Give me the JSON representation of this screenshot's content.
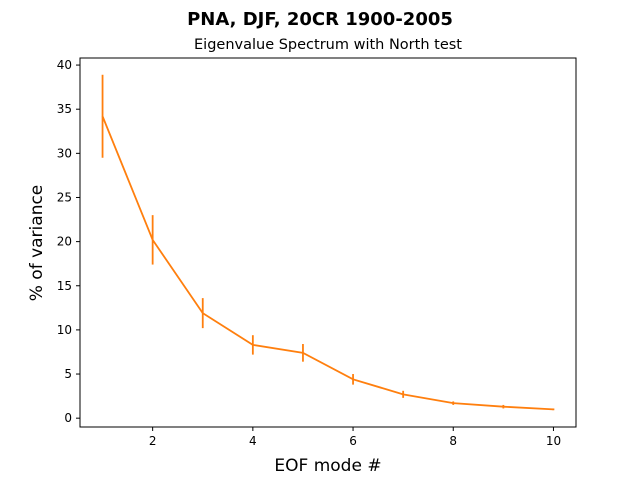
{
  "chart_data": {
    "type": "line",
    "suptitle": "PNA, DJF, 20CR 1900-2005",
    "title": "Eigenvalue Spectrum with North test",
    "xlabel": "EOF mode #",
    "ylabel": "% of variance",
    "xlim": [
      0.55,
      10.45
    ],
    "ylim": [
      -1.0,
      40.8
    ],
    "xticks": [
      2,
      4,
      6,
      8,
      10
    ],
    "yticks": [
      0,
      5,
      10,
      15,
      20,
      25,
      30,
      35,
      40
    ],
    "grid": false,
    "color": "#ff7f0e",
    "series": [
      {
        "x": [
          1,
          2,
          3,
          4,
          5,
          6,
          7,
          8,
          9,
          10
        ],
        "values": [
          34.2,
          20.2,
          11.9,
          8.3,
          7.4,
          4.4,
          2.7,
          1.7,
          1.3,
          1.0
        ],
        "error": [
          4.7,
          2.8,
          1.7,
          1.1,
          1.0,
          0.6,
          0.4,
          0.2,
          0.2,
          0.1
        ]
      }
    ]
  }
}
